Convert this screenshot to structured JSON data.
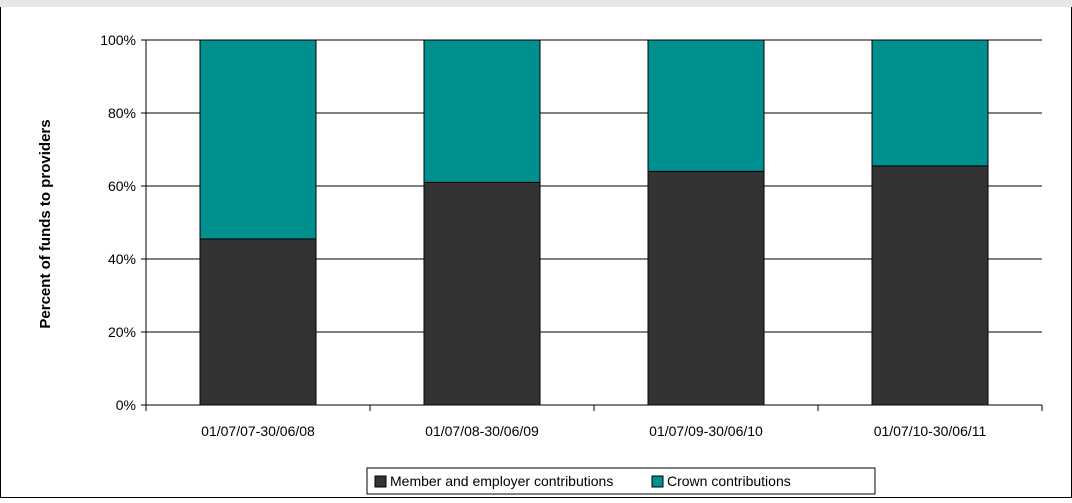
{
  "chart_data": {
    "type": "bar",
    "stacked": true,
    "categories": [
      "01/07/07-30/06/08",
      "01/07/08-30/06/09",
      "01/07/09-30/06/10",
      "01/07/10-30/06/11"
    ],
    "series": [
      {
        "name": "Member and employer contributions",
        "values": [
          45.5,
          61,
          64,
          65.5
        ],
        "color": "#333333"
      },
      {
        "name": "Crown contributions",
        "values": [
          54.5,
          39,
          36,
          34.5
        ],
        "color": "#009090"
      }
    ],
    "title": "",
    "xlabel": "",
    "ylabel": "Percent of funds to providers",
    "ylim": [
      0,
      100
    ],
    "yticks": [
      0,
      20,
      40,
      60,
      80,
      100
    ],
    "ytick_labels": [
      "0%",
      "20%",
      "40%",
      "60%",
      "80%",
      "100%"
    ],
    "grid": true,
    "legend": "bottom"
  }
}
